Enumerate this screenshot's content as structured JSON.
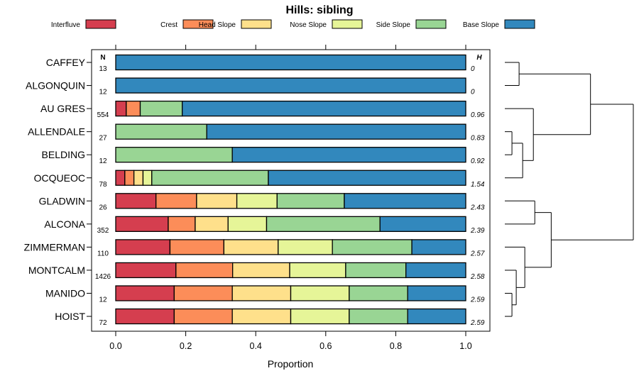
{
  "chart_data": {
    "type": "stacked-bar",
    "title": "Hills: sibling",
    "xlabel": "Proportion",
    "ylabel": "",
    "xlim": [
      0,
      1
    ],
    "xticks": [
      0.0,
      0.2,
      0.4,
      0.6,
      0.8,
      1.0
    ],
    "xtick_labels": [
      "0.0",
      "0.2",
      "0.4",
      "0.6",
      "0.8",
      "1.0"
    ],
    "n_header": "N",
    "h_header": "H",
    "legend_position": "top",
    "legend": [
      {
        "name": "Interfluve",
        "color": "#d53e4f"
      },
      {
        "name": "Crest",
        "color": "#fc8d59"
      },
      {
        "name": "Head Slope",
        "color": "#fee08b"
      },
      {
        "name": "Nose Slope",
        "color": "#e6f598"
      },
      {
        "name": "Side Slope",
        "color": "#99d594"
      },
      {
        "name": "Base Slope",
        "color": "#3288bd"
      }
    ],
    "rows": [
      {
        "label": "CAFFEY",
        "n": "13",
        "h": "0",
        "values": [
          0,
          0,
          0,
          0,
          0,
          1.0
        ]
      },
      {
        "label": "ALGONQUIN",
        "n": "12",
        "h": "0",
        "values": [
          0,
          0,
          0,
          0,
          0,
          1.0
        ]
      },
      {
        "label": "AU GRES",
        "n": "554",
        "h": "0.96",
        "values": [
          0.03,
          0.04,
          0,
          0,
          0.12,
          0.81
        ]
      },
      {
        "label": "ALLENDALE",
        "n": "27",
        "h": "0.83",
        "values": [
          0,
          0,
          0,
          0,
          0.26,
          0.74
        ]
      },
      {
        "label": "BELDING",
        "n": "12",
        "h": "0.92",
        "values": [
          0,
          0,
          0,
          0,
          0.333,
          0.667
        ]
      },
      {
        "label": "OCQUEOC",
        "n": "78",
        "h": "1.54",
        "values": [
          0.026,
          0.026,
          0.026,
          0.025,
          0.333,
          0.564
        ]
      },
      {
        "label": "GLADWIN",
        "n": "26",
        "h": "2.43",
        "values": [
          0.115,
          0.116,
          0.115,
          0.115,
          0.192,
          0.347
        ]
      },
      {
        "label": "ALCONA",
        "n": "352",
        "h": "2.39",
        "values": [
          0.15,
          0.077,
          0.094,
          0.11,
          0.324,
          0.245
        ]
      },
      {
        "label": "ZIMMERMAN",
        "n": "110",
        "h": "2.57",
        "values": [
          0.155,
          0.154,
          0.155,
          0.155,
          0.227,
          0.154
        ]
      },
      {
        "label": "MONTCALM",
        "n": "1426",
        "h": "2.58",
        "values": [
          0.172,
          0.162,
          0.163,
          0.16,
          0.172,
          0.171
        ]
      },
      {
        "label": "MANIDO",
        "n": "12",
        "h": "2.59",
        "values": [
          0.167,
          0.166,
          0.167,
          0.167,
          0.167,
          0.166
        ]
      },
      {
        "label": "HOIST",
        "n": "72",
        "h": "2.59",
        "values": [
          0.167,
          0.166,
          0.167,
          0.167,
          0.167,
          0.166
        ]
      }
    ],
    "dendrogram": {
      "leaf_order": [
        "CAFFEY",
        "ALGONQUIN",
        "AU GRES",
        "ALLENDALE",
        "BELDING",
        "OCQUEOC",
        "GLADWIN",
        "ALCONA",
        "ZIMMERMAN",
        "MONTCALM",
        "MANIDO",
        "HOIST"
      ],
      "merges": [
        {
          "left": "ALLENDALE",
          "right": "BELDING",
          "height": 0.0556
        },
        {
          "left": "MANIDO",
          "right": "HOIST",
          "height": 0.0556
        },
        {
          "left": "MONTCALM",
          "right": "MANIDO+HOIST",
          "height": 0.0889
        },
        {
          "left": "CAFFEY",
          "right": "ALGONQUIN",
          "height": 0.1111
        },
        {
          "left": "ALLENDALE+BELDING",
          "right": "OCQUEOC",
          "height": 0.1389
        },
        {
          "left": "ZIMMERMAN",
          "right": "MONTCALM+MANIDO+HOIST",
          "height": 0.1556
        },
        {
          "left": "AU GRES",
          "right": "ALLENDALE+BELDING+OCQUEOC",
          "height": 0.2222
        },
        {
          "left": "GLADWIN",
          "right": "ALCONA",
          "height": 0.2333
        },
        {
          "left": "GLADWIN+ALCONA",
          "right": "ZIMMERMAN+MONTCALM+MANIDO+HOIST",
          "height": 0.3611
        },
        {
          "left": "CAFFEY+ALGONQUIN",
          "right": "AU GRES+ALLENDALE+BELDING+OCQUEOC",
          "height": 0.6667
        },
        {
          "left": "top-cluster",
          "right": "bottom-cluster",
          "height": 1.0
        }
      ]
    }
  }
}
